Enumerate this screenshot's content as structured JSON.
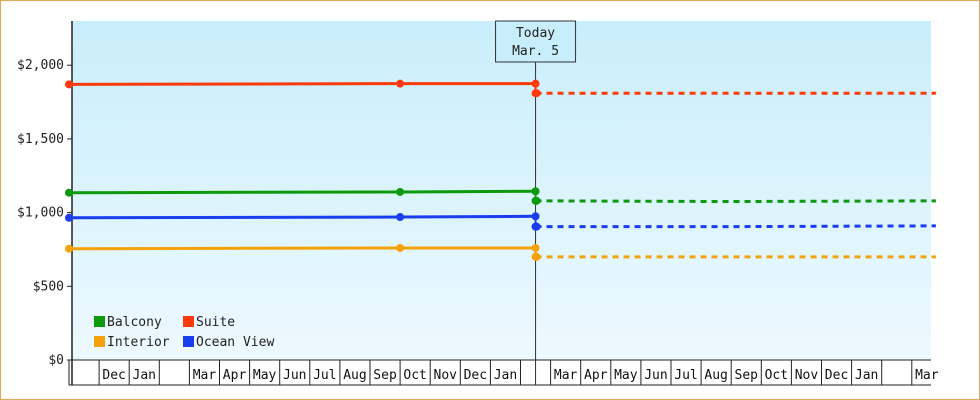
{
  "chart_data": {
    "type": "line",
    "title": "",
    "xlabel": "",
    "ylabel": "",
    "ylim": [
      0,
      2300
    ],
    "y_ticks": [
      {
        "value": 0,
        "label": "$0"
      },
      {
        "value": 500,
        "label": "$500"
      },
      {
        "value": 1000,
        "label": "$1,000"
      },
      {
        "value": 1500,
        "label": "$1,500"
      },
      {
        "value": 2000,
        "label": "$2,000"
      }
    ],
    "x_ticks": [
      "",
      "Dec",
      "Jan",
      "",
      "Mar",
      "Apr",
      "May",
      "Jun",
      "Jul",
      "Aug",
      "Sep",
      "Oct",
      "Nov",
      "Dec",
      "Jan",
      "",
      "Mar",
      "Apr",
      "May",
      "Jun",
      "Jul",
      "Aug",
      "Sep",
      "Oct",
      "Nov",
      "Dec",
      "Jan",
      "",
      "Mar"
    ],
    "today_index": 15.5,
    "today_marker": {
      "line1": "Today",
      "line2": "Mar. 5"
    },
    "grid": false,
    "legend_position": "bottom-left",
    "series": [
      {
        "name": "Suite",
        "color": "#ff3a0a",
        "history": [
          {
            "x": 0,
            "y": 1870
          },
          {
            "x": 11,
            "y": 1875
          },
          {
            "x": 15.5,
            "y": 1875
          }
        ],
        "forecast": [
          {
            "x": 15.5,
            "y": 1810
          },
          {
            "x": 28.8,
            "y": 1810
          }
        ]
      },
      {
        "name": "Balcony",
        "color": "#0c9a0c",
        "history": [
          {
            "x": 0,
            "y": 1135
          },
          {
            "x": 11,
            "y": 1140
          },
          {
            "x": 15.5,
            "y": 1145
          }
        ],
        "forecast": [
          {
            "x": 15.5,
            "y": 1080
          },
          {
            "x": 22,
            "y": 1075
          },
          {
            "x": 28.8,
            "y": 1080
          }
        ]
      },
      {
        "name": "Ocean View",
        "color": "#1a3df0",
        "history": [
          {
            "x": 0,
            "y": 965
          },
          {
            "x": 11,
            "y": 970
          },
          {
            "x": 15.5,
            "y": 975
          }
        ],
        "forecast": [
          {
            "x": 15.5,
            "y": 905
          },
          {
            "x": 22,
            "y": 905
          },
          {
            "x": 28.8,
            "y": 910
          }
        ]
      },
      {
        "name": "Interior",
        "color": "#f5a20a",
        "history": [
          {
            "x": 0,
            "y": 755
          },
          {
            "x": 11,
            "y": 760
          },
          {
            "x": 15.5,
            "y": 760
          }
        ],
        "forecast": [
          {
            "x": 15.5,
            "y": 700
          },
          {
            "x": 28.8,
            "y": 700
          }
        ]
      }
    ],
    "legend": [
      {
        "name": "Balcony",
        "color": "#0c9a0c"
      },
      {
        "name": "Suite",
        "color": "#ff3a0a"
      },
      {
        "name": "Interior",
        "color": "#f5a20a"
      },
      {
        "name": "Ocean View",
        "color": "#1a3df0"
      }
    ]
  }
}
